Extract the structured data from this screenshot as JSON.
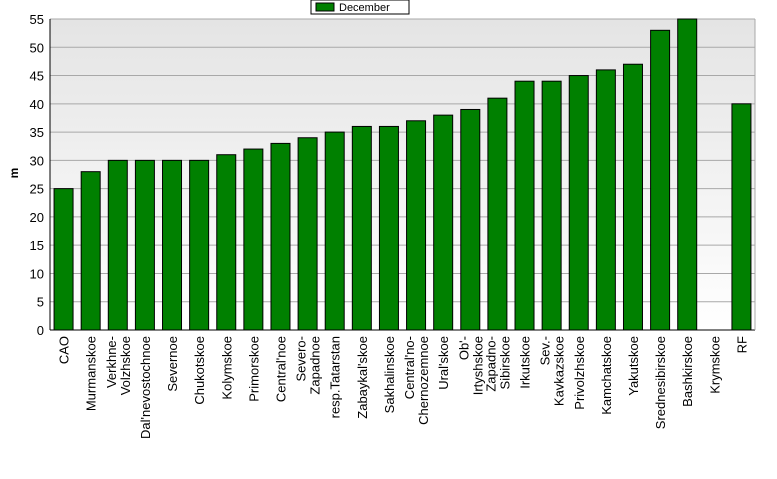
{
  "chart_data": {
    "type": "bar",
    "title": "",
    "xlabel": "",
    "ylabel": "m",
    "ylim": [
      0,
      55
    ],
    "ytick_step": 5,
    "grid": true,
    "legend_position": "top-center",
    "series": [
      {
        "name": "December",
        "color": "#008000",
        "values": [
          25,
          28,
          30,
          30,
          30,
          30,
          31,
          32,
          33,
          34,
          35,
          36,
          36,
          37,
          38,
          39,
          41,
          44,
          44,
          45,
          46,
          47,
          53,
          55,
          0,
          40
        ]
      }
    ],
    "categories": [
      "CAO",
      "Murmanskoe",
      "Verkhne-Volzhskoe",
      "Dal'nevostochnoe",
      "Severnoe",
      "Chukotskoe",
      "Kolymskoe",
      "Primorskoe",
      "Central'noe",
      "Severo-Zapadnoe",
      "resp.Tatarstan",
      "Zabaykal'skoe",
      "Sakhalinskoe",
      "Central'no-Chernozemnoe",
      "Ural'skoe",
      "Ob'-Irtyshskoe",
      "Zapadno-Sibirskoe",
      "Irkutskoe",
      "Sev.-Kavkazskoe",
      "Privolzhskoe",
      "Kamchatskoe",
      "Yakutskoe",
      "Srednesibirskoe",
      "Bashkirskoe",
      "Krymskoe",
      "RF"
    ],
    "category_label_lines": [
      [
        "CAO"
      ],
      [
        "Murmanskoe"
      ],
      [
        "Verkhne-",
        "Volzhskoe"
      ],
      [
        "Dal'nevostochnoe"
      ],
      [
        "Severnoe"
      ],
      [
        "Chukotskoe"
      ],
      [
        "Kolymskoe"
      ],
      [
        "Primorskoe"
      ],
      [
        "Central'noe"
      ],
      [
        "Severo-",
        "Zapadnoe"
      ],
      [
        "resp.Tatarstan"
      ],
      [
        "Zabaykal'skoe"
      ],
      [
        "Sakhalinskoe"
      ],
      [
        "Central'no-",
        "Chernozemnoe"
      ],
      [
        "Ural'skoe"
      ],
      [
        "Ob'-",
        "Irtyshskoe"
      ],
      [
        "Zapadno-",
        "Sibirskoe"
      ],
      [
        "Irkutskoe"
      ],
      [
        "Sev.-",
        "Kavkazskoe"
      ],
      [
        "Privolzhskoe"
      ],
      [
        "Kamchatskoe"
      ],
      [
        "Yakutskoe"
      ],
      [
        "Srednesibirskoe"
      ],
      [
        "Bashkirskoe"
      ],
      [
        "Krymskoe"
      ],
      [
        "RF"
      ]
    ]
  }
}
